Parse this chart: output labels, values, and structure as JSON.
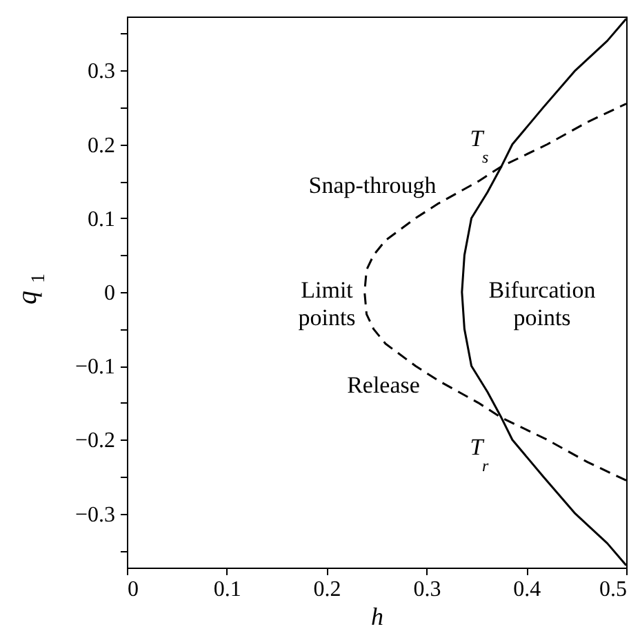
{
  "chart_data": {
    "type": "line",
    "xlabel": "h",
    "ylabel": "q$_{1}$",
    "xlim": [
      0,
      0.5
    ],
    "ylim": [
      -0.373,
      0.373
    ],
    "xticks": [
      0,
      0.1,
      0.2,
      0.3,
      0.4,
      0.5
    ],
    "yticks": [
      {
        "value": -0.35,
        "label": null
      },
      -0.3,
      {
        "value": -0.25,
        "label": null
      },
      -0.2,
      {
        "value": -0.15,
        "label": null
      },
      -0.1,
      {
        "value": -0.05,
        "label": null
      },
      0,
      {
        "value": 0.05,
        "label": null
      },
      0.1,
      {
        "value": 0.15,
        "label": null
      },
      0.2,
      {
        "value": 0.25,
        "label": null
      },
      0.3,
      {
        "value": 0.35,
        "label": null
      }
    ],
    "series": [
      {
        "color": "#000000",
        "line_style": "dashed",
        "x": [
          0.5,
          0.461,
          0.421,
          0.375,
          0.352,
          0.312,
          0.289,
          0.259,
          0.247,
          0.24,
          0.238,
          0.24,
          0.247,
          0.259,
          0.289,
          0.312,
          0.352,
          0.375,
          0.421,
          0.461,
          0.5
        ],
        "values": [
          -0.255,
          -0.23,
          -0.2,
          -0.17,
          -0.15,
          -0.12,
          -0.1,
          -0.07,
          -0.05,
          -0.03,
          0,
          0.03,
          0.05,
          0.07,
          0.1,
          0.12,
          0.15,
          0.17,
          0.2,
          0.23,
          0.255
        ]
      },
      {
        "color": "#000000",
        "line_style": "solid",
        "x": [
          0.5,
          0.481,
          0.449,
          0.417,
          0.386,
          0.375,
          0.361,
          0.345,
          0.338,
          0.3355,
          0.338,
          0.345,
          0.361,
          0.375,
          0.386,
          0.417,
          0.449,
          0.481,
          0.5
        ],
        "values": [
          -0.37,
          -0.34,
          -0.3,
          -0.25,
          -0.2,
          -0.17,
          -0.135,
          -0.1,
          -0.05,
          0,
          0.05,
          0.1,
          0.135,
          0.17,
          0.2,
          0.25,
          0.3,
          0.34,
          0.37
        ]
      }
    ],
    "annotations": [
      "Snap-through",
      "Limit points",
      "Bifurcation points",
      "Release",
      {
        "text": "T$_{s}$",
        "x": 0.375,
        "y": 0.17
      },
      {
        "text": "T$_{r}$",
        "x": 0.375,
        "y": -0.17
      }
    ]
  }
}
